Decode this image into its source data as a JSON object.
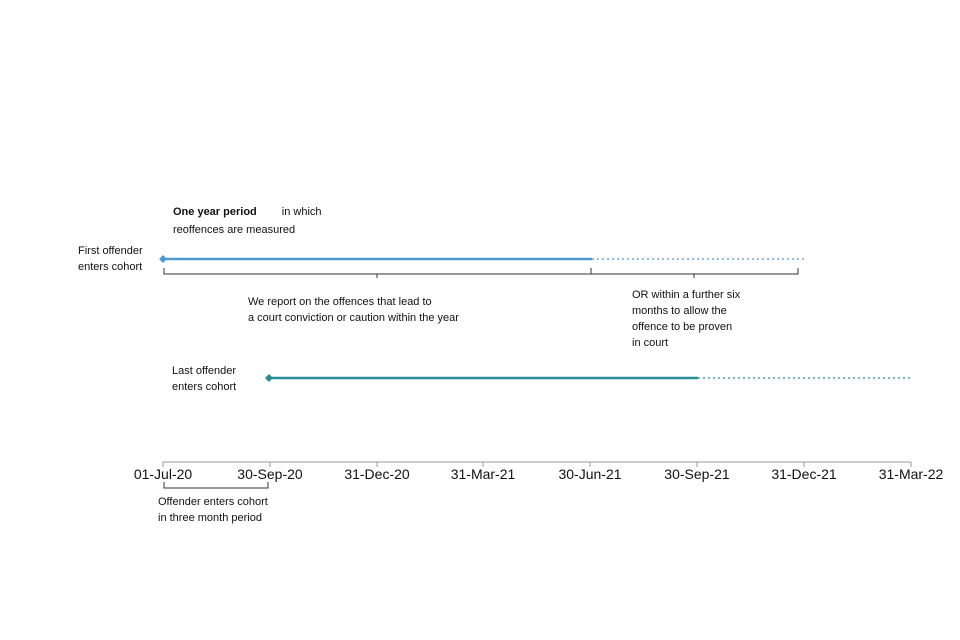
{
  "diagram": {
    "first_offender_label": [
      "First offender",
      "enters cohort"
    ],
    "last_offender_label": [
      "Last offender",
      "enters cohort"
    ],
    "one_year_title": "One year period",
    "one_year_rest": "in which",
    "one_year_line2": "reoffences are measured",
    "report_note": [
      "We report on the offences that lead to",
      "a court conviction or caution within the year"
    ],
    "further_note": [
      "OR within a further six",
      "months to allow the",
      "offence to be proven",
      "in court"
    ],
    "cohort_note": [
      "Offender enters cohort",
      "in three month period"
    ],
    "timeline_ticks": [
      "01-Jul-20",
      "30-Sep-20",
      "31-Dec-20",
      "31-Mar-21",
      "30-Jun-21",
      "30-Sep-21",
      "31-Dec-21",
      "31-Mar-22"
    ],
    "colors": {
      "first_line": "#4a9bd1",
      "last_line": "#2a8c96",
      "axis": "#999999",
      "bracket": "#333333"
    }
  }
}
